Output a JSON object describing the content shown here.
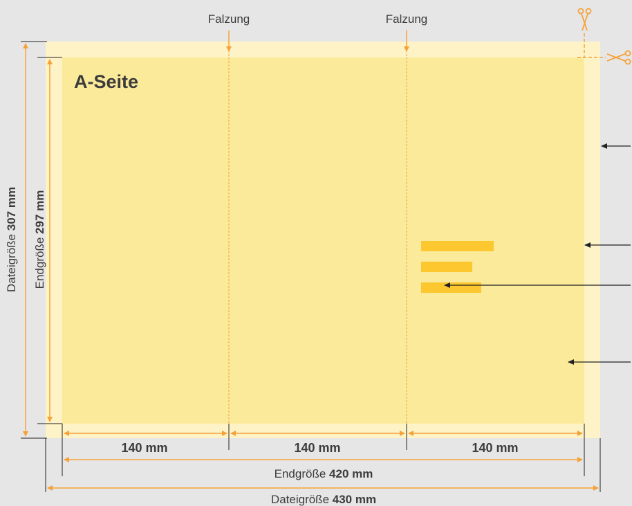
{
  "page_label": "A-Seite",
  "fold_label_1": "Falzung",
  "fold_label_2": "Falzung",
  "panel_widths": [
    "140 mm",
    "140 mm",
    "140 mm"
  ],
  "final_width": {
    "prefix": "Endgröße ",
    "value": "420 mm"
  },
  "file_width": {
    "prefix": "Dateigröße ",
    "value": "430 mm"
  },
  "final_height": {
    "prefix": "Endgröße ",
    "value": "297 mm"
  },
  "file_height": {
    "prefix": "Dateigröße ",
    "value": "307 mm"
  },
  "icons": [
    "scissors-icon",
    "scissors-icon"
  ],
  "colors": {
    "background": "#e6e6e6",
    "bleed": "#fdf3c6",
    "page": "#fbea9a",
    "text_block": "#fdc82f",
    "dimension_line": "#f5a23a",
    "fold_line": "#f5a23a"
  }
}
